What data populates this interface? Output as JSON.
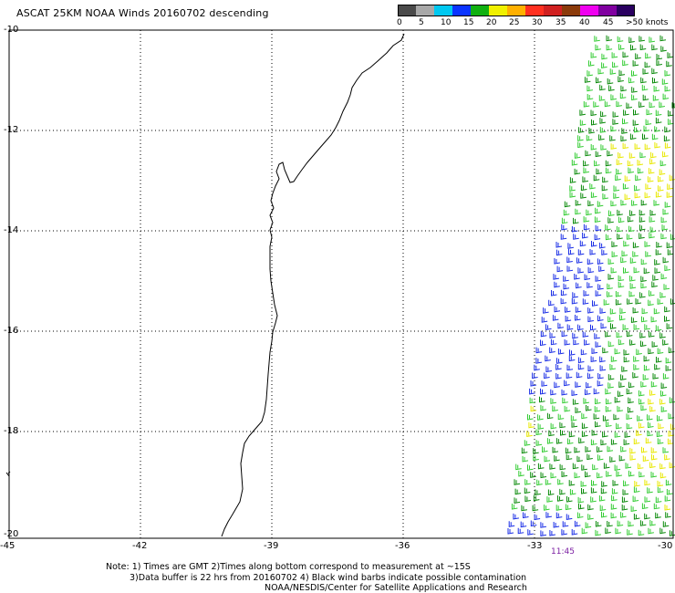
{
  "header": {
    "title": "ASCAT 25KM NOAA Winds 20160702 descending"
  },
  "colorbar": {
    "segments": [
      "#4a4a4a",
      "#a8a8a8",
      "#00c8f0",
      "#0a34ff",
      "#10b010",
      "#f0f000",
      "#ffb000",
      "#ff3020",
      "#d02020",
      "#8b3a0a",
      "#f000f0",
      "#8000a0",
      "#2a0060"
    ],
    "labels": [
      "0",
      "5",
      "10",
      "15",
      "20",
      "25",
      "30",
      "35",
      "40",
      "45",
      ">50 knots"
    ]
  },
  "map": {
    "lat_labels": [
      "-10",
      "-12",
      "-14",
      "-16",
      "-18",
      "-20"
    ],
    "lon_labels": [
      "-45",
      "-42",
      "-39",
      "-36",
      "-33",
      "-30"
    ],
    "extent": {
      "lon": [
        -45,
        -30
      ],
      "lat": [
        -20,
        -10
      ]
    },
    "gridlines": "dotted",
    "swath_time": "11:45",
    "barb_colors": {
      "blue": "#1a2ee6",
      "green_light": "#33cc33",
      "green_dark": "#0a8a0a",
      "yellow": "#e8e800"
    }
  },
  "footer": {
    "note_line1": "Note: 1) Times are GMT 2)Times along bottom correspond to measurement at ~15S",
    "note_line2": "3)Data buffer is 22 hrs from 20160702 4) Black wind barbs indicate possible contamination",
    "credit": "NOAA/NESDIS/Center for Satellite Applications and Research"
  }
}
